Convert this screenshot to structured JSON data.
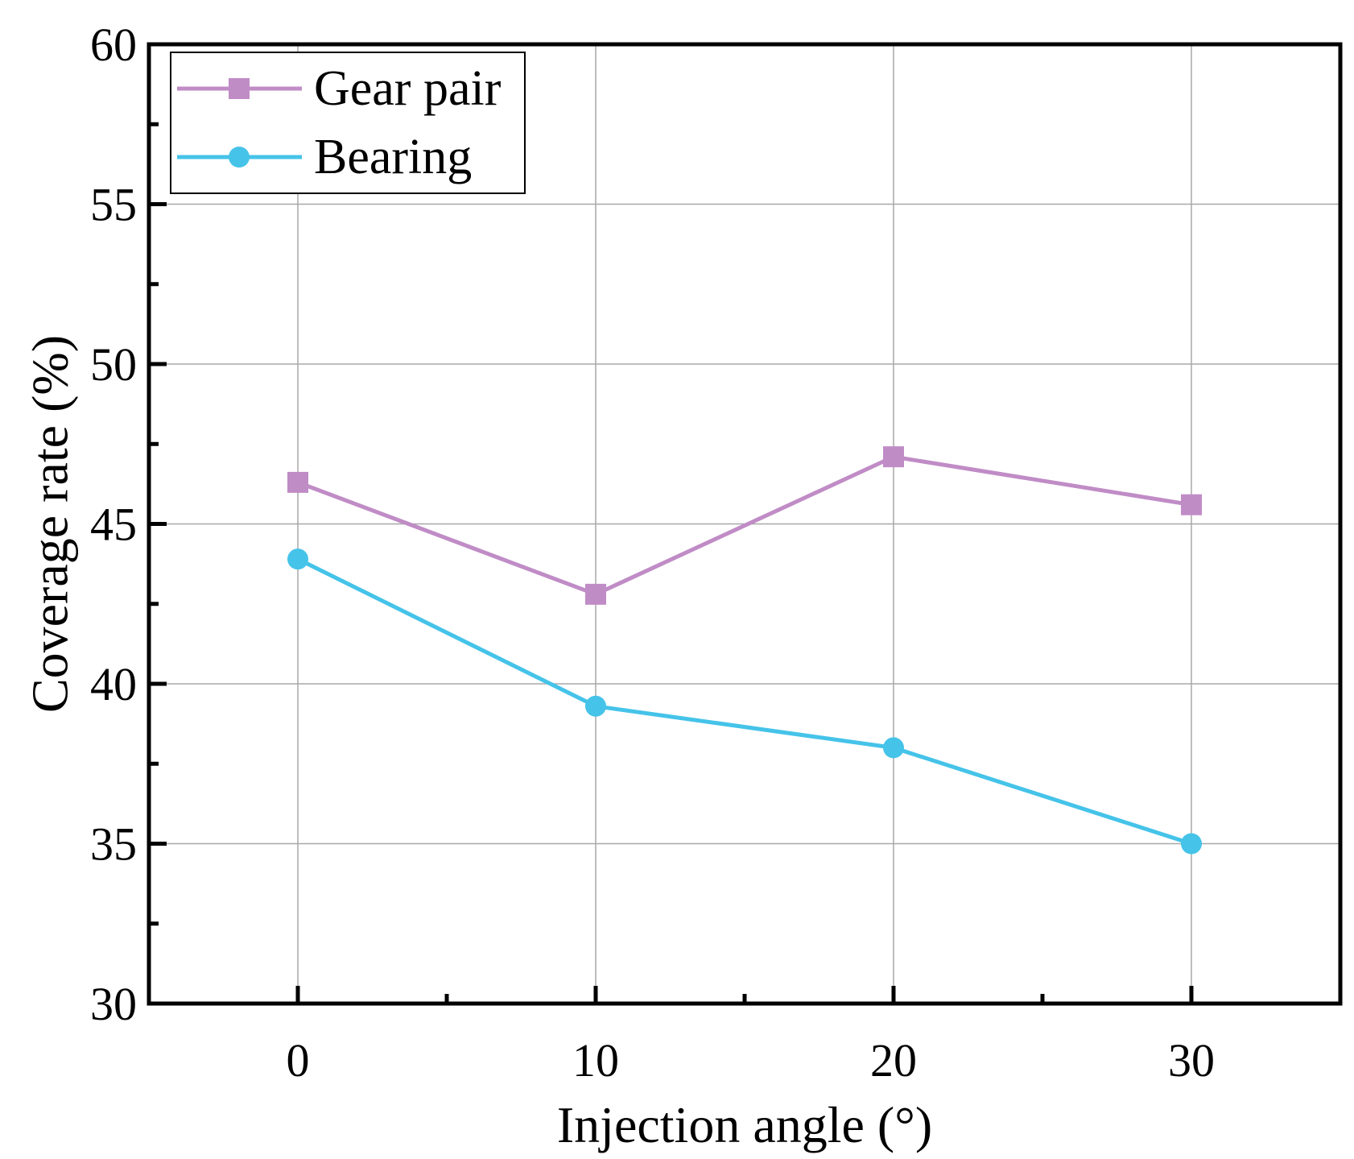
{
  "chart_data": {
    "type": "line",
    "title": "",
    "xlabel": "Injection angle (°)",
    "ylabel": "Coverage rate (%)",
    "xlim": [
      -5,
      35
    ],
    "ylim": [
      30,
      60
    ],
    "x": [
      0,
      10,
      20,
      30
    ],
    "xticks": [
      "0",
      "10",
      "20",
      "30"
    ],
    "yticks": [
      "30",
      "35",
      "40",
      "45",
      "50",
      "55",
      "60"
    ],
    "grid": true,
    "legend_position": "top-left",
    "series": [
      {
        "name": "Gear pair",
        "values": [
          46.3,
          42.8,
          47.1,
          45.6
        ],
        "color": "#c08cc6",
        "marker": "square"
      },
      {
        "name": "Bearing",
        "values": [
          43.9,
          39.3,
          38.0,
          35.0
        ],
        "color": "#45c3e9",
        "marker": "circle"
      }
    ]
  }
}
